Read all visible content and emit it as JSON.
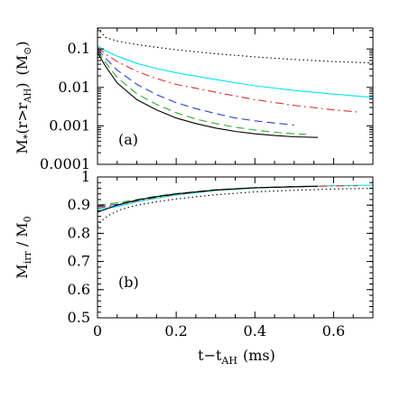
{
  "chart_data": [
    {
      "type": "line",
      "panel_label": "(a)",
      "ylabel_main": "M",
      "ylabel_sub": "*",
      "ylabel_rest": "(r>r",
      "ylabel_rest_sub": "AH",
      "ylabel_close": ")",
      "ylabel_unit": "(M",
      "ylabel_unit_sub": "⊙",
      "ylabel_unit_close": ")",
      "yscale": "log",
      "xlim": [
        0,
        0.7
      ],
      "ylim": [
        0.0001,
        0.35
      ],
      "ytick_values": [
        0.0001,
        0.001,
        0.01,
        0.1
      ],
      "ytick_labels": [
        "0.0001",
        "0.001",
        "0.01",
        "0.1"
      ],
      "series": [
        {
          "style": "dotted",
          "color": "#000000",
          "x": [
            0.0,
            0.02,
            0.05,
            0.1,
            0.15,
            0.2,
            0.3,
            0.4,
            0.5,
            0.6,
            0.7
          ],
          "y": [
            0.35,
            0.2,
            0.16,
            0.13,
            0.11,
            0.095,
            0.075,
            0.062,
            0.053,
            0.047,
            0.043
          ]
        },
        {
          "style": "solid",
          "color": "#00e5ee",
          "x": [
            0.0,
            0.02,
            0.05,
            0.1,
            0.15,
            0.2,
            0.3,
            0.4,
            0.5,
            0.6,
            0.7
          ],
          "y": [
            0.12,
            0.09,
            0.065,
            0.042,
            0.031,
            0.024,
            0.016,
            0.011,
            0.0083,
            0.0067,
            0.0055
          ]
        },
        {
          "style": "dashdot",
          "color": "#e03030",
          "x": [
            0.0,
            0.02,
            0.05,
            0.1,
            0.15,
            0.2,
            0.3,
            0.4,
            0.5,
            0.6,
            0.66
          ],
          "y": [
            0.11,
            0.075,
            0.047,
            0.026,
            0.017,
            0.012,
            0.0075,
            0.0048,
            0.0034,
            0.0026,
            0.0023
          ]
        },
        {
          "style": "dashed",
          "color": "#2a3ec8",
          "x": [
            0.0,
            0.02,
            0.05,
            0.1,
            0.15,
            0.2,
            0.25,
            0.3,
            0.35,
            0.4,
            0.45,
            0.5
          ],
          "y": [
            0.1,
            0.058,
            0.028,
            0.012,
            0.0065,
            0.004,
            0.0028,
            0.0021,
            0.0016,
            0.00135,
            0.00118,
            0.00105
          ]
        },
        {
          "style": "dashed",
          "color": "#2fae2f",
          "x": [
            0.0,
            0.02,
            0.05,
            0.1,
            0.15,
            0.2,
            0.25,
            0.3,
            0.35,
            0.4,
            0.45,
            0.5,
            0.53
          ],
          "y": [
            0.09,
            0.045,
            0.018,
            0.0068,
            0.0036,
            0.0022,
            0.0015,
            0.00115,
            0.00092,
            0.00078,
            0.00068,
            0.00062,
            0.0006
          ]
        },
        {
          "style": "solid",
          "color": "#000000",
          "x": [
            0.0,
            0.02,
            0.05,
            0.1,
            0.15,
            0.2,
            0.25,
            0.3,
            0.35,
            0.4,
            0.45,
            0.5,
            0.56
          ],
          "y": [
            0.08,
            0.036,
            0.013,
            0.0048,
            0.0026,
            0.0016,
            0.00115,
            0.00088,
            0.00072,
            0.00062,
            0.00056,
            0.00052,
            0.0005
          ]
        }
      ]
    },
    {
      "type": "line",
      "panel_label": "(b)",
      "ylabel_main": "M",
      "ylabel_sub": "irr",
      "ylabel_rest": " / M",
      "ylabel_rest_sub": "0",
      "xlabel_main": "t−t",
      "xlabel_sub": "AH",
      "xlabel_unit": "(ms)",
      "xlim": [
        0,
        0.7
      ],
      "ylim": [
        0.5,
        1.0
      ],
      "xtick_values": [
        0,
        0.2,
        0.4,
        0.6
      ],
      "xtick_labels": [
        "0",
        "0.2",
        "0.4",
        "0.6"
      ],
      "ytick_values": [
        0.5,
        0.6,
        0.7,
        0.8,
        0.9,
        1.0
      ],
      "ytick_labels": [
        "0.5",
        "0.6",
        "0.7",
        "0.8",
        "0.9",
        "1"
      ],
      "series": [
        {
          "style": "dotted",
          "color": "#000000",
          "x": [
            0.0,
            0.01,
            0.03,
            0.06,
            0.1,
            0.15,
            0.2,
            0.3,
            0.4,
            0.5,
            0.6,
            0.7
          ],
          "y": [
            0.825,
            0.845,
            0.865,
            0.885,
            0.9,
            0.912,
            0.922,
            0.937,
            0.947,
            0.953,
            0.957,
            0.96
          ]
        },
        {
          "style": "solid",
          "color": "#00e5ee",
          "x": [
            0.0,
            0.05,
            0.1,
            0.15,
            0.2,
            0.3,
            0.4,
            0.5,
            0.6,
            0.7
          ],
          "y": [
            0.885,
            0.895,
            0.912,
            0.925,
            0.936,
            0.952,
            0.961,
            0.966,
            0.969,
            0.971
          ]
        },
        {
          "style": "dashdot",
          "color": "#e03030",
          "x": [
            0.0,
            0.05,
            0.1,
            0.15,
            0.2,
            0.3,
            0.4,
            0.5,
            0.6,
            0.66
          ],
          "y": [
            0.89,
            0.9,
            0.915,
            0.928,
            0.938,
            0.953,
            0.962,
            0.966,
            0.968,
            0.969
          ]
        },
        {
          "style": "dashed",
          "color": "#2a3ec8",
          "x": [
            0.0,
            0.05,
            0.1,
            0.15,
            0.2,
            0.3,
            0.4,
            0.5
          ],
          "y": [
            0.895,
            0.903,
            0.918,
            0.93,
            0.94,
            0.954,
            0.962,
            0.966
          ]
        },
        {
          "style": "dashed",
          "color": "#2fae2f",
          "x": [
            0.0,
            0.05,
            0.1,
            0.15,
            0.2,
            0.3,
            0.4,
            0.53
          ],
          "y": [
            0.9,
            0.908,
            0.92,
            0.932,
            0.941,
            0.955,
            0.962,
            0.966
          ]
        },
        {
          "style": "solid",
          "color": "#000000",
          "x": [
            0.0,
            0.05,
            0.1,
            0.15,
            0.2,
            0.3,
            0.4,
            0.56
          ],
          "y": [
            0.875,
            0.9,
            0.918,
            0.93,
            0.94,
            0.954,
            0.962,
            0.967
          ]
        }
      ]
    }
  ]
}
